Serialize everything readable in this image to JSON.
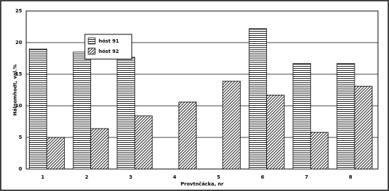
{
  "chart_data": {
    "type": "bar",
    "categories": [
      "1",
      "2",
      "3",
      "4",
      "5",
      "6",
      "7",
      "8"
    ],
    "series": [
      {
        "name": "hóst 91",
        "color": "#000000",
        "pattern": "horizontal",
        "values": [
          19,
          18.5,
          17.7,
          null,
          null,
          22.2,
          16.7,
          16.7
        ]
      },
      {
        "name": "hóst 92",
        "color": "#000000",
        "pattern": "diagonal",
        "values": [
          5,
          6.4,
          8.4,
          10.6,
          13.9,
          11.7,
          5.8,
          13.1
        ]
      }
    ],
    "y_label": "Hálnomhodt, val.%",
    "x_label": "Provtnčácka, nr",
    "ylim": [
      0,
      25
    ],
    "yticks": [
      0,
      5,
      10,
      15,
      20,
      25
    ],
    "grid": true,
    "legend": "upper left"
  }
}
